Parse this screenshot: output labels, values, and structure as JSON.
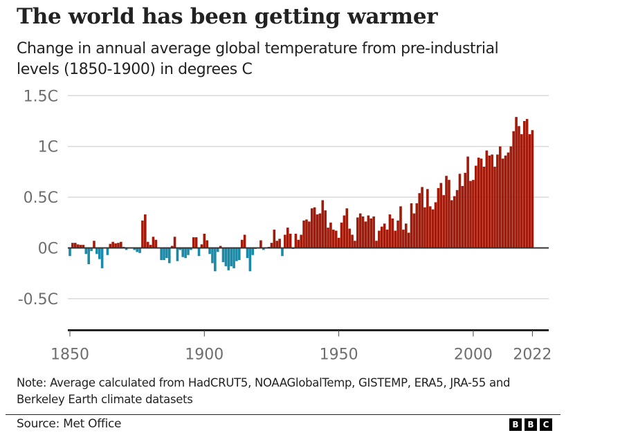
{
  "header": {
    "title": "The world has been getting warmer",
    "subtitle": "Change in annual average global temperature from pre-industrial levels (1850-1900) in degrees C"
  },
  "footer": {
    "note": "Note: Average calculated from HadCRUT5, NOAAGlobalTemp, GISTEMP, ERA5, JRA-55 and Berkeley Earth climate datasets",
    "source": "Source: Met Office",
    "logo_letters": [
      "B",
      "B",
      "C"
    ]
  },
  "colors": {
    "warm": "#a11a0a",
    "cool": "#1b8aa8",
    "gridline": "#d9d9d9",
    "axis": "#333333",
    "tick_text": "#6e6e6e"
  },
  "chart_data": {
    "type": "bar",
    "title": "The world has been getting warmer",
    "subtitle": "Change in annual average global temperature from pre-industrial levels (1850-1900) in degrees C",
    "xlabel": "",
    "ylabel": "",
    "unit": "degrees C",
    "ylim": [
      -0.6,
      1.5
    ],
    "yticks": [
      1.5,
      1,
      0.5,
      0,
      -0.5
    ],
    "ytick_labels": [
      "1.5C",
      "1C",
      "0.5C",
      "0C",
      "-0.5C"
    ],
    "xlim": [
      1850,
      2022
    ],
    "xticks": [
      1850,
      1900,
      1950,
      2000,
      2022
    ],
    "xtick_labels": [
      "1850",
      "1900",
      "1950",
      "2000",
      "2022"
    ],
    "grid": true,
    "legend": "none",
    "x_start": 1850,
    "values": [
      -0.08,
      0.05,
      0.05,
      0.035,
      0.03,
      0.03,
      -0.06,
      -0.16,
      -0.03,
      0.07,
      -0.06,
      -0.11,
      -0.2,
      0.0,
      -0.07,
      0.04,
      0.06,
      0.045,
      0.05,
      0.06,
      0.01,
      -0.02,
      0.0,
      0.0,
      -0.02,
      -0.04,
      -0.05,
      0.27,
      0.33,
      0.06,
      0.03,
      0.11,
      0.08,
      0.0,
      -0.12,
      -0.12,
      -0.1,
      -0.15,
      0.02,
      0.11,
      -0.13,
      -0.02,
      -0.09,
      -0.1,
      -0.07,
      -0.02,
      0.105,
      0.105,
      -0.08,
      0.035,
      0.14,
      0.075,
      -0.06,
      -0.15,
      -0.23,
      -0.04,
      0.02,
      -0.14,
      -0.18,
      -0.22,
      -0.18,
      -0.2,
      -0.13,
      -0.12,
      0.08,
      0.13,
      -0.1,
      -0.23,
      -0.07,
      -0.01,
      0.0,
      0.075,
      -0.02,
      0.0,
      0.01,
      0.05,
      0.18,
      0.07,
      0.09,
      -0.08,
      0.13,
      0.2,
      0.14,
      -0.01,
      0.14,
      0.08,
      0.13,
      0.27,
      0.28,
      0.26,
      0.39,
      0.4,
      0.33,
      0.34,
      0.47,
      0.37,
      0.2,
      0.25,
      0.18,
      0.17,
      0.1,
      0.25,
      0.32,
      0.39,
      0.19,
      0.13,
      0.07,
      0.3,
      0.34,
      0.31,
      0.26,
      0.32,
      0.29,
      0.31,
      0.07,
      0.17,
      0.21,
      0.24,
      0.18,
      0.33,
      0.29,
      0.17,
      0.27,
      0.41,
      0.18,
      0.24,
      0.15,
      0.44,
      0.34,
      0.44,
      0.54,
      0.6,
      0.4,
      0.58,
      0.41,
      0.38,
      0.45,
      0.59,
      0.64,
      0.52,
      0.71,
      0.67,
      0.47,
      0.51,
      0.57,
      0.73,
      0.61,
      0.74,
      0.9,
      0.66,
      0.67,
      0.81,
      0.89,
      0.88,
      0.8,
      0.96,
      0.91,
      0.92,
      0.8,
      0.92,
      1.0,
      0.88,
      0.91,
      0.94,
      1.0,
      1.15,
      1.29,
      1.2,
      1.12,
      1.25,
      1.27,
      1.12,
      1.16
    ]
  }
}
